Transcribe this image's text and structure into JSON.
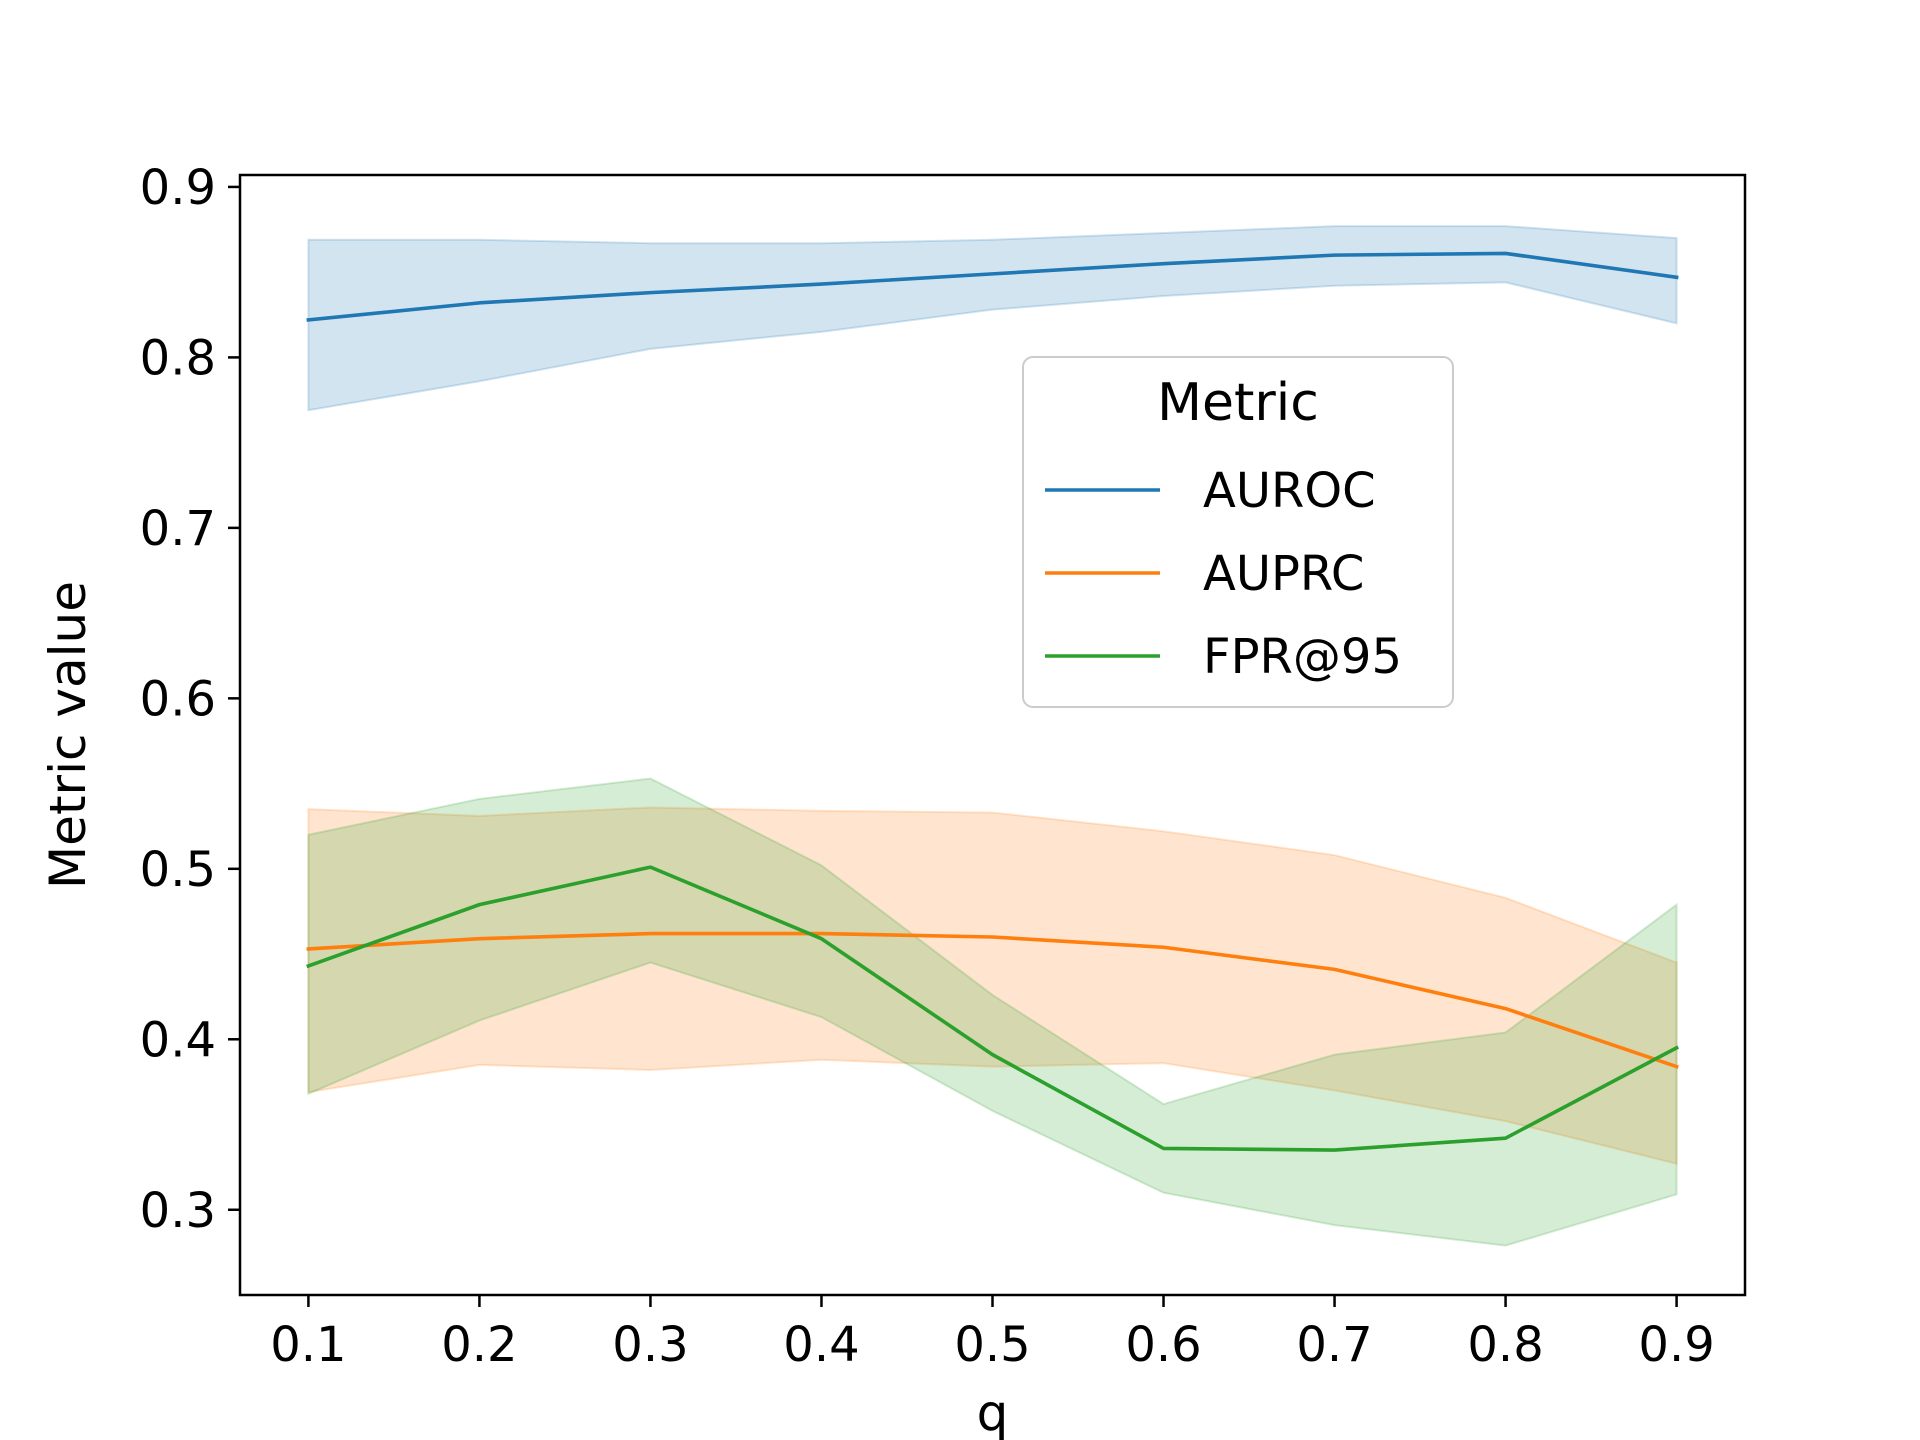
{
  "chart_data": {
    "type": "line",
    "xlabel": "q",
    "ylabel": "Metric value",
    "xlim": [
      0.06,
      0.94
    ],
    "ylim": [
      0.25,
      0.907
    ],
    "x": [
      0.1,
      0.2,
      0.3,
      0.4,
      0.5,
      0.6,
      0.7,
      0.8,
      0.9
    ],
    "x_ticks": [
      0.1,
      0.2,
      0.3,
      0.4,
      0.5,
      0.6,
      0.7,
      0.8,
      0.9
    ],
    "y_ticks": [
      0.3,
      0.4,
      0.5,
      0.6,
      0.7,
      0.8,
      0.9
    ],
    "legend": {
      "title": "Metric",
      "position": "center-right"
    },
    "grid": false,
    "series": [
      {
        "name": "AUROC",
        "color": "#1f77b4",
        "values": [
          0.822,
          0.832,
          0.838,
          0.843,
          0.849,
          0.855,
          0.86,
          0.861,
          0.847
        ],
        "lower": [
          0.769,
          0.786,
          0.805,
          0.815,
          0.828,
          0.836,
          0.842,
          0.844,
          0.82
        ],
        "upper": [
          0.869,
          0.869,
          0.867,
          0.867,
          0.869,
          0.873,
          0.877,
          0.877,
          0.87
        ]
      },
      {
        "name": "AUPRC",
        "color": "#ff7f0e",
        "values": [
          0.453,
          0.459,
          0.462,
          0.462,
          0.46,
          0.454,
          0.441,
          0.418,
          0.384
        ],
        "lower": [
          0.369,
          0.385,
          0.382,
          0.388,
          0.384,
          0.386,
          0.37,
          0.352,
          0.327
        ],
        "upper": [
          0.535,
          0.531,
          0.536,
          0.534,
          0.533,
          0.522,
          0.508,
          0.483,
          0.445
        ]
      },
      {
        "name": "FPR@95",
        "color": "#2ca02c",
        "values": [
          0.443,
          0.479,
          0.501,
          0.459,
          0.391,
          0.336,
          0.335,
          0.342,
          0.395
        ],
        "lower": [
          0.368,
          0.411,
          0.445,
          0.413,
          0.358,
          0.31,
          0.291,
          0.279,
          0.309
        ],
        "upper": [
          0.52,
          0.541,
          0.553,
          0.502,
          0.426,
          0.362,
          0.391,
          0.404,
          0.479
        ]
      }
    ]
  }
}
